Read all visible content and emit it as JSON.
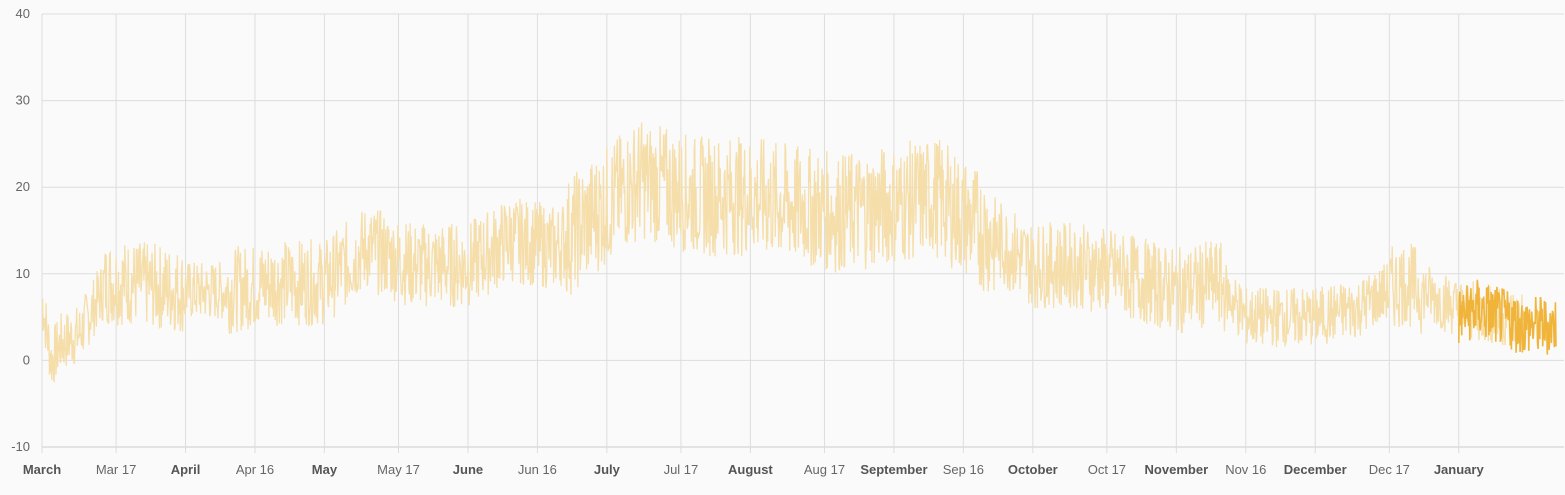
{
  "chart_data": {
    "type": "line",
    "series": [
      {
        "color": "#f5dea9",
        "start": "2017-03-01",
        "end": "2018-01-15",
        "note_points": [
          [
            "2017-03-01",
            7
          ],
          [
            "2017-03-03",
            0
          ],
          [
            "2017-03-05",
            2
          ],
          [
            "2017-03-09",
            3
          ],
          [
            "2017-03-15",
            9
          ],
          [
            "2017-03-20",
            9
          ],
          [
            "2017-04-01",
            8
          ],
          [
            "2017-04-10",
            8
          ],
          [
            "2017-04-20",
            9
          ],
          [
            "2017-05-01",
            9
          ],
          [
            "2017-05-10",
            13
          ],
          [
            "2017-05-20",
            11
          ],
          [
            "2017-06-01",
            11
          ],
          [
            "2017-06-10",
            14
          ],
          [
            "2017-06-20",
            13
          ],
          [
            "2017-07-01",
            18
          ],
          [
            "2017-07-08",
            21
          ],
          [
            "2017-07-20",
            19
          ],
          [
            "2017-08-01",
            19
          ],
          [
            "2017-08-10",
            18
          ],
          [
            "2017-08-20",
            17
          ],
          [
            "2017-09-01",
            18
          ],
          [
            "2017-09-10",
            19
          ],
          [
            "2017-09-20",
            15
          ],
          [
            "2017-10-01",
            11
          ],
          [
            "2017-10-10",
            11
          ],
          [
            "2017-10-20",
            10
          ],
          [
            "2017-11-01",
            8
          ],
          [
            "2017-11-10",
            9
          ],
          [
            "2017-11-16",
            5
          ],
          [
            "2017-12-01",
            5
          ],
          [
            "2017-12-10",
            6
          ],
          [
            "2017-12-20",
            9
          ],
          [
            "2018-01-01",
            6
          ],
          [
            "2018-01-10",
            5
          ]
        ]
      },
      {
        "color": "#f0b43a",
        "start": "2018-01-01",
        "end": "2018-01-22",
        "note_points": [
          [
            "2018-01-01",
            5
          ],
          [
            "2018-01-05",
            6
          ],
          [
            "2018-01-10",
            5
          ],
          [
            "2018-01-15",
            4
          ],
          [
            "2018-01-22",
            4
          ]
        ]
      }
    ],
    "ylim": [
      -10,
      40
    ],
    "y_ticks": [
      "-10",
      "0",
      "10",
      "20",
      "30",
      "40"
    ],
    "x_ticks": [
      {
        "label": "March",
        "date": "2017-03-01",
        "major": true
      },
      {
        "label": "Mar 17",
        "date": "2017-03-17",
        "major": false
      },
      {
        "label": "April",
        "date": "2017-04-01",
        "major": true
      },
      {
        "label": "Apr 16",
        "date": "2017-04-16",
        "major": false
      },
      {
        "label": "May",
        "date": "2017-05-01",
        "major": true
      },
      {
        "label": "May 17",
        "date": "2017-05-17",
        "major": false
      },
      {
        "label": "June",
        "date": "2017-06-01",
        "major": true
      },
      {
        "label": "Jun 16",
        "date": "2017-06-16",
        "major": false
      },
      {
        "label": "July",
        "date": "2017-07-01",
        "major": true
      },
      {
        "label": "Jul 17",
        "date": "2017-07-17",
        "major": false
      },
      {
        "label": "August",
        "date": "2017-08-01",
        "major": true
      },
      {
        "label": "Aug 17",
        "date": "2017-08-17",
        "major": false
      },
      {
        "label": "September",
        "date": "2017-09-01",
        "major": true
      },
      {
        "label": "Sep 16",
        "date": "2017-09-16",
        "major": false
      },
      {
        "label": "October",
        "date": "2017-10-01",
        "major": true
      },
      {
        "label": "Oct 17",
        "date": "2017-10-17",
        "major": false
      },
      {
        "label": "November",
        "date": "2017-11-01",
        "major": true
      },
      {
        "label": "Nov 16",
        "date": "2017-11-16",
        "major": false
      },
      {
        "label": "December",
        "date": "2017-12-01",
        "major": true
      },
      {
        "label": "Dec 17",
        "date": "2017-12-17",
        "major": false
      },
      {
        "label": "January",
        "date": "2018-01-01",
        "major": true
      }
    ],
    "grid": true,
    "legend": "none"
  }
}
